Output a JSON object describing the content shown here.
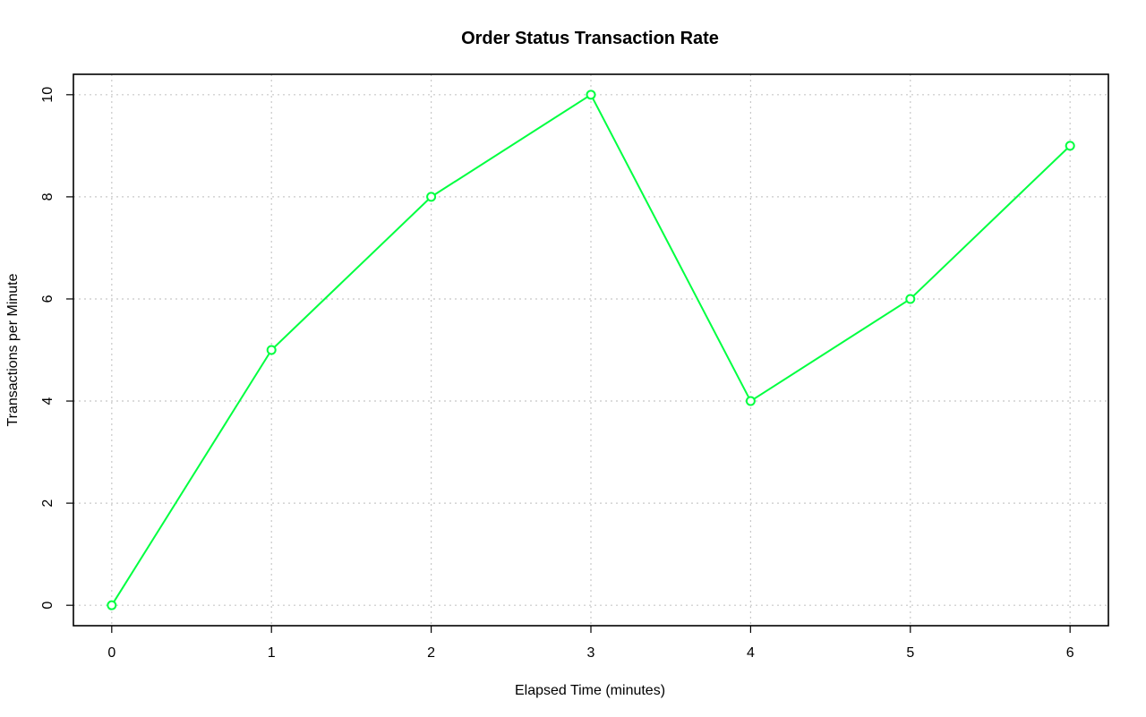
{
  "chart_data": {
    "type": "line",
    "title": "Order Status Transaction Rate",
    "xlabel": "Elapsed Time (minutes)",
    "ylabel": "Transactions per Minute",
    "x": [
      0,
      1,
      2,
      3,
      4,
      5,
      6
    ],
    "series": [
      {
        "values": [
          0,
          5,
          8,
          10,
          4,
          6,
          9
        ],
        "color": "#00ff40",
        "marker": "open-circle"
      }
    ],
    "xlim": [
      -0.24,
      6.24
    ],
    "ylim": [
      -0.4,
      10.4
    ],
    "xticks": [
      "0",
      "1",
      "2",
      "3",
      "4",
      "5",
      "6"
    ],
    "yticks": [
      "0",
      "2",
      "4",
      "6",
      "8",
      "10"
    ],
    "grid": true,
    "legend": "none"
  }
}
